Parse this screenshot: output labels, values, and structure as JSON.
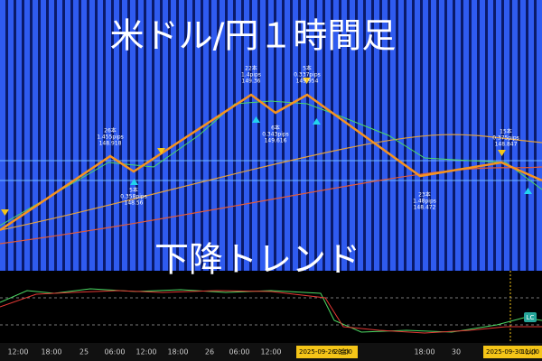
{
  "chart_data": {
    "type": "candlestick",
    "title": "米ドル/円１時間足",
    "subtitle": "下降トレンド",
    "annotations": [
      {
        "bars": "26本",
        "pips": "1.455pips",
        "price": "148.918"
      },
      {
        "bars": "5本",
        "pips": "0.358pips",
        "price": "148.56"
      },
      {
        "bars": "22本",
        "pips": "1.4pips",
        "price": "149.36"
      },
      {
        "bars": "6本",
        "pips": "0.343pips",
        "price": "149.616"
      },
      {
        "bars": "5本",
        "pips": "0.337pips",
        "price": "149.954"
      },
      {
        "bars": "23本",
        "pips": "1.48pips",
        "price": "148.472"
      },
      {
        "bars": "15本",
        "pips": "0.375pips",
        "price": "148.847"
      }
    ],
    "categories": [
      "12:00",
      "18:00",
      "25",
      "06:00",
      "12:00",
      "18:00",
      "26",
      "06:00",
      "12:00",
      "18:00",
      "30"
    ],
    "highlights": [
      "2025-09-26 (金)",
      "23:00",
      "2025-09-30 (火)",
      "11:00"
    ],
    "badges": [
      "LC"
    ]
  }
}
